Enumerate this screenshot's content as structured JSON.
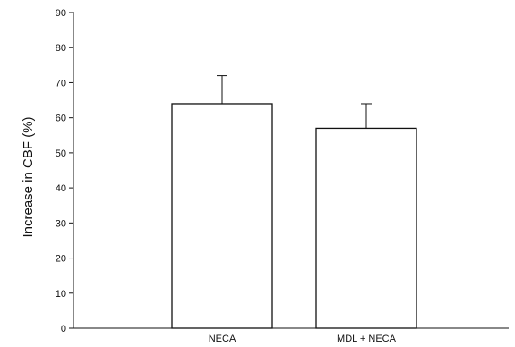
{
  "chart_data": {
    "type": "bar",
    "categories": [
      "NECA",
      "MDL + NECA"
    ],
    "values": [
      64,
      57
    ],
    "error_bars": [
      8,
      7
    ],
    "xlabel": "",
    "ylabel": "Increase in CBF (%)",
    "ylim": [
      0,
      90
    ],
    "yticks": [
      0,
      10,
      20,
      30,
      40,
      50,
      60,
      70,
      80,
      90
    ],
    "grid": false,
    "legend": "none",
    "bar_fill": "#ffffff",
    "bar_stroke": "#111111",
    "axis_color": "#111111"
  }
}
